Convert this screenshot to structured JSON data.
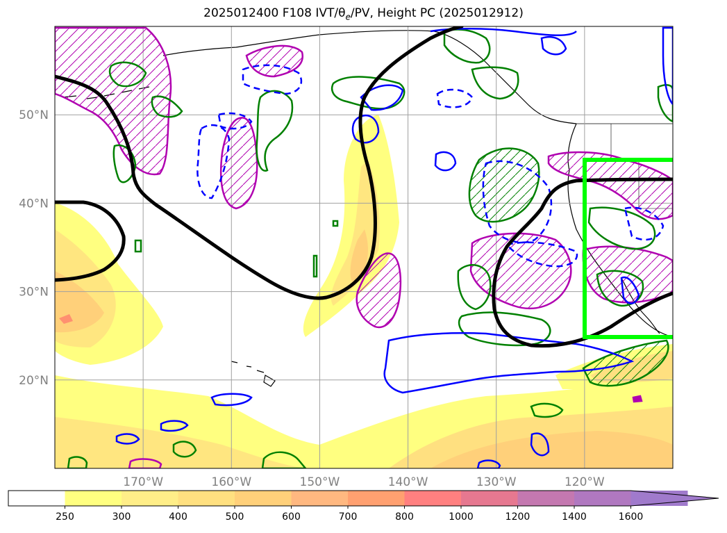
{
  "title": "2025012400 F108 IVT/θe/PV, Height PC (2025012912)",
  "map": {
    "lat_labels": [
      "50°N",
      "40°N",
      "30°N",
      "20°N"
    ],
    "lon_labels": [
      "170°W",
      "160°W",
      "150°W",
      "140°W",
      "130°W",
      "120°W"
    ],
    "lat_values": [
      50,
      40,
      30,
      20
    ],
    "lon_values": [
      -170,
      -160,
      -150,
      -140,
      -130,
      -120
    ],
    "extent": {
      "lon_min": -180,
      "lon_max": -110,
      "lat_min": 10,
      "lat_max": 60
    },
    "gridlines": true
  },
  "colorbar": {
    "levels": [
      "250",
      "300",
      "400",
      "500",
      "600",
      "700",
      "800",
      "1000",
      "1200",
      "1400",
      "1600"
    ],
    "colors": [
      "#ffffff",
      "#ffff80",
      "#ffee88",
      "#ffe080",
      "#ffd07a",
      "#ffb880",
      "#ffa070",
      "#ff8080",
      "#e67890",
      "#c478b0",
      "#b078c0",
      "#a07acc"
    ],
    "extend": "max"
  },
  "colors": {
    "height_contour": "#000000",
    "theta_e": "#0000ff",
    "pv": "#b000b0",
    "green_contour": "#008000",
    "box": "#00ff00",
    "grid": "#a0a0a0",
    "coast": "#000000"
  },
  "highlight_box": {
    "lon_min": -120,
    "lon_max": -110,
    "lat_min": 25,
    "lat_max": 45
  }
}
